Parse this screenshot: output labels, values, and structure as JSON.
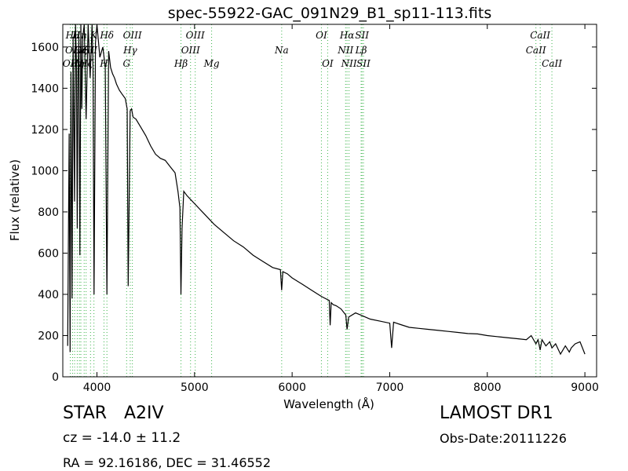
{
  "chart_data": {
    "type": "line",
    "title": "spec-55922-GAC_091N29_B1_sp11-113.fits",
    "xlabel": "Wavelength (Å)",
    "ylabel": "Flux (relative)",
    "xlim": [
      3650,
      9120
    ],
    "ylim": [
      0,
      1710
    ],
    "xticks": [
      "4000",
      "5000",
      "6000",
      "7000",
      "8000",
      "9000"
    ],
    "yticks": [
      "0",
      "200",
      "400",
      "600",
      "800",
      "1000",
      "1200",
      "1400",
      "1600"
    ],
    "series": [
      {
        "color": "#000000",
        "x": [
          3700,
          3715,
          3725,
          3734,
          3745,
          3755,
          3770,
          3780,
          3790,
          3798,
          3806,
          3815,
          3825,
          3835,
          3845,
          3855,
          3870,
          3889,
          3910,
          3930,
          3950,
          3960,
          3970,
          3985,
          4000,
          4030,
          4060,
          4085,
          4102,
          4120,
          4140,
          4160,
          4180,
          4200,
          4230,
          4260,
          4290,
          4310,
          4320,
          4340,
          4355,
          4370,
          4400,
          4450,
          4500,
          4550,
          4600,
          4650,
          4700,
          4750,
          4800,
          4830,
          4850,
          4861,
          4872,
          4890,
          4920,
          5000,
          5100,
          5200,
          5300,
          5400,
          5500,
          5600,
          5700,
          5800,
          5880,
          5893,
          5905,
          5950,
          6000,
          6100,
          6200,
          6300,
          6380,
          6390,
          6400,
          6420,
          6450,
          6500,
          6550,
          6563,
          6580,
          6650,
          6700,
          6800,
          6900,
          7000,
          7020,
          7040,
          7100,
          7200,
          7300,
          7400,
          7500,
          7600,
          7700,
          7800,
          7900,
          8000,
          8100,
          8200,
          8300,
          8400,
          8450,
          8498,
          8520,
          8542,
          8560,
          8600,
          8640,
          8662,
          8700,
          8750,
          8800,
          8840,
          8860,
          8900,
          8950,
          9000
        ],
        "y": [
          150,
          1180,
          120,
          1480,
          380,
          1650,
          850,
          1710,
          1520,
          720,
          1480,
          1650,
          590,
          1710,
          1300,
          1650,
          1710,
          1250,
          1710,
          1450,
          1710,
          1500,
          400,
          1620,
          1710,
          1550,
          1600,
          1500,
          400,
          1580,
          1500,
          1470,
          1450,
          1420,
          1390,
          1370,
          1350,
          1300,
          440,
          1290,
          1300,
          1260,
          1250,
          1210,
          1170,
          1120,
          1080,
          1060,
          1050,
          1020,
          990,
          900,
          820,
          400,
          720,
          900,
          880,
          840,
          790,
          740,
          700,
          660,
          630,
          590,
          560,
          530,
          520,
          420,
          510,
          500,
          480,
          450,
          420,
          390,
          370,
          250,
          360,
          350,
          345,
          330,
          300,
          230,
          290,
          310,
          300,
          280,
          270,
          260,
          140,
          265,
          255,
          240,
          235,
          230,
          225,
          220,
          215,
          210,
          208,
          200,
          195,
          190,
          185,
          180,
          200,
          160,
          180,
          130,
          180,
          150,
          170,
          140,
          160,
          110,
          150,
          120,
          140,
          160,
          170,
          110
        ]
      }
    ],
    "line_marker_color": "#3cb44b",
    "lines": [
      {
        "wl": 3727,
        "label": "OII",
        "row": 3
      },
      {
        "wl": 3750,
        "label": "Hθ",
        "row": 1
      },
      {
        "wl": 3771,
        "label": "OIII",
        "row": 2
      },
      {
        "wl": 3798,
        "label": "Hη",
        "row": 3
      },
      {
        "wl": 3820,
        "label": "Hη",
        "row": 1
      },
      {
        "wl": 3835,
        "label": "Hζ",
        "row": 2
      },
      {
        "wl": 3869,
        "label": "CaII",
        "row": 2
      },
      {
        "wl": 3889,
        "label": "Hζ",
        "row": 3
      },
      {
        "wl": 3934,
        "label": "SII",
        "row": 2
      },
      {
        "wl": 3969,
        "label": "K",
        "row": 1
      },
      {
        "wl": 4072,
        "label": "H",
        "row": 3
      },
      {
        "wl": 4102,
        "label": "Hδ",
        "row": 1
      },
      {
        "wl": 4304,
        "label": "G",
        "row": 3
      },
      {
        "wl": 4341,
        "label": "Hγ",
        "row": 2
      },
      {
        "wl": 4363,
        "label": "OIII",
        "row": 1
      },
      {
        "wl": 4861,
        "label": "Hβ",
        "row": 3
      },
      {
        "wl": 4959,
        "label": "OIII",
        "row": 2
      },
      {
        "wl": 5007,
        "label": "OIII",
        "row": 1
      },
      {
        "wl": 5175,
        "label": "Mg",
        "row": 3
      },
      {
        "wl": 5893,
        "label": "Na",
        "row": 2
      },
      {
        "wl": 6300,
        "label": "OI",
        "row": 1
      },
      {
        "wl": 6364,
        "label": "OI",
        "row": 3
      },
      {
        "wl": 6548,
        "label": "NII",
        "row": 2
      },
      {
        "wl": 6563,
        "label": "Hα",
        "row": 1
      },
      {
        "wl": 6583,
        "label": "NII",
        "row": 3
      },
      {
        "wl": 6707,
        "label": "Lβ",
        "row": 2
      },
      {
        "wl": 6716,
        "label": "SII",
        "row": 1
      },
      {
        "wl": 6731,
        "label": "SII",
        "row": 3
      },
      {
        "wl": 8498,
        "label": "CaII",
        "row": 2
      },
      {
        "wl": 8542,
        "label": "CaII",
        "row": 1
      },
      {
        "wl": 8662,
        "label": "CaII",
        "row": 3
      }
    ]
  },
  "info": {
    "object_class": "STAR",
    "subclass": "A2IV",
    "survey": "LAMOST DR1",
    "cz": "cz = -14.0 ± 11.2",
    "obs_date": "Obs-Date:20111226",
    "radec": "RA = 92.16186, DEC = 31.46552"
  }
}
